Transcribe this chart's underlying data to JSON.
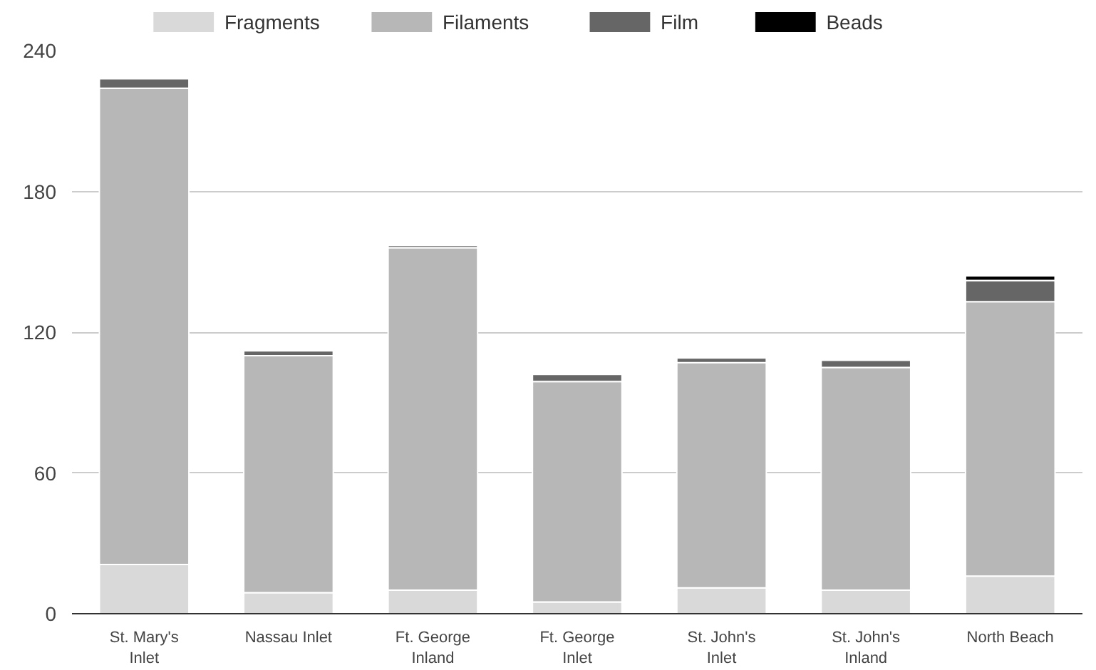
{
  "chart_data": {
    "type": "bar",
    "stacked": true,
    "categories": [
      "St. Mary's Inlet",
      "Nassau Inlet",
      "Ft. George Inland",
      "Ft. George Inlet",
      "St. John's Inlet",
      "St. John's Inland",
      "North Beach"
    ],
    "series": [
      {
        "name": "Fragments",
        "color": "#d9d9d9",
        "values": [
          21,
          9,
          10,
          5,
          11,
          10,
          16
        ]
      },
      {
        "name": "Filaments",
        "color": "#b7b7b7",
        "values": [
          203,
          101,
          146,
          94,
          96,
          95,
          117
        ]
      },
      {
        "name": "Film",
        "color": "#666666",
        "values": [
          4,
          2,
          1,
          3,
          2,
          3,
          9
        ]
      },
      {
        "name": "Beads",
        "color": "#000000",
        "values": [
          0,
          0,
          0,
          0,
          0,
          0,
          2
        ]
      }
    ],
    "ylim": [
      0,
      240
    ],
    "yticks": [
      0,
      60,
      120,
      180,
      240
    ],
    "grid": "y",
    "legend": "top"
  }
}
